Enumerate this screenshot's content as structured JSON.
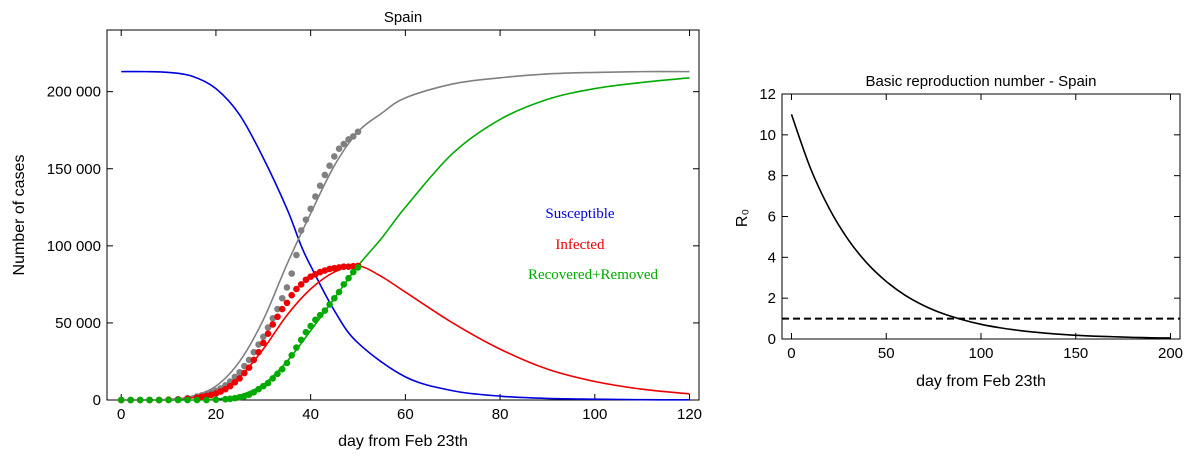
{
  "chart_data": [
    {
      "type": "line",
      "title": "Spain",
      "xlabel": "day from Feb 23th",
      "ylabel": "Number of cases",
      "xlim": [
        -3,
        122
      ],
      "ylim": [
        0,
        240000
      ],
      "xticks": [
        0,
        20,
        40,
        60,
        80,
        100,
        120
      ],
      "yticks": [
        0,
        50000,
        100000,
        150000,
        200000
      ],
      "xtick_labels": [
        "0",
        "20",
        "40",
        "60",
        "80",
        "100",
        "120"
      ],
      "ytick_labels": [
        "0",
        "50 000",
        "100 000",
        "150 000",
        "200 000"
      ],
      "legend_position": "center-right",
      "series": [
        {
          "name": "Susceptible",
          "kind": "curve",
          "color": "#0000dd",
          "x": [
            0,
            5,
            10,
            15,
            20,
            25,
            30,
            35,
            38,
            40,
            45,
            50,
            60,
            70,
            80,
            90,
            100,
            110,
            120
          ],
          "y": [
            213000,
            213000,
            212500,
            210000,
            202000,
            185000,
            157000,
            124000,
            100000,
            87000,
            58000,
            37000,
            15000,
            6000,
            2500,
            1000,
            500,
            200,
            100
          ]
        },
        {
          "name": "Infected",
          "kind": "curve",
          "color": "#ee0000",
          "x": [
            0,
            10,
            15,
            20,
            25,
            30,
            35,
            40,
            45,
            50,
            55,
            60,
            70,
            80,
            90,
            100,
            110,
            120
          ],
          "y": [
            0,
            300,
            1500,
            5000,
            15000,
            33000,
            55000,
            72000,
            83000,
            87000,
            80000,
            70000,
            50000,
            33000,
            20000,
            12000,
            7000,
            4000
          ]
        },
        {
          "name": "Recovered+Removed",
          "kind": "curve",
          "color": "#00aa00",
          "x": [
            0,
            15,
            20,
            25,
            30,
            35,
            40,
            45,
            50,
            55,
            60,
            70,
            80,
            90,
            100,
            110,
            120
          ],
          "y": [
            0,
            0,
            500,
            3000,
            10000,
            25000,
            45000,
            66000,
            87000,
            105000,
            125000,
            160000,
            182000,
            195000,
            202000,
            206000,
            209000
          ]
        },
        {
          "name": "",
          "kind": "curve",
          "color": "#808080",
          "x": [
            0,
            10,
            15,
            20,
            25,
            30,
            35,
            40,
            45,
            50,
            55,
            60,
            70,
            80,
            90,
            100,
            110,
            120
          ],
          "y": [
            0,
            400,
            2500,
            9000,
            25000,
            52000,
            88000,
            121000,
            152000,
            174000,
            186000,
            196000,
            205000,
            209000,
            211500,
            212500,
            213000,
            213000
          ]
        },
        {
          "name": "",
          "kind": "points",
          "color": "#808080",
          "x": [
            0,
            2,
            4,
            6,
            8,
            10,
            12,
            14,
            16,
            17,
            18,
            19,
            20,
            21,
            22,
            23,
            24,
            25,
            26,
            27,
            28,
            29,
            30,
            31,
            32,
            33,
            34,
            35,
            36,
            37,
            38,
            39,
            40,
            41,
            42,
            43,
            44,
            45,
            46,
            47,
            48,
            49,
            50
          ],
          "y": [
            0,
            0,
            0,
            0,
            0,
            200,
            500,
            1200,
            2200,
            3000,
            4000,
            5000,
            6000,
            7500,
            9500,
            12000,
            15000,
            18000,
            22000,
            26000,
            31000,
            36000,
            41000,
            47000,
            53000,
            59000,
            66000,
            73000,
            82000,
            94000,
            110000,
            117000,
            124000,
            132000,
            139000,
            146000,
            152000,
            158000,
            163000,
            166000,
            169000,
            171000,
            174000
          ]
        },
        {
          "name": "",
          "kind": "points",
          "color": "#ee0000",
          "x": [
            0,
            2,
            4,
            6,
            8,
            10,
            12,
            14,
            16,
            17,
            18,
            19,
            20,
            21,
            22,
            23,
            24,
            25,
            26,
            27,
            28,
            29,
            30,
            31,
            32,
            33,
            34,
            35,
            36,
            37,
            38,
            39,
            40,
            41,
            42,
            43,
            44,
            45,
            46,
            47,
            48,
            49,
            50
          ],
          "y": [
            0,
            0,
            0,
            0,
            0,
            100,
            300,
            800,
            1500,
            2000,
            2600,
            3300,
            4200,
            5500,
            7000,
            9000,
            11500,
            14000,
            17500,
            21000,
            26000,
            31000,
            37000,
            43000,
            49000,
            54000,
            59000,
            63000,
            68000,
            72000,
            75000,
            78000,
            80000,
            81500,
            83000,
            84000,
            85000,
            85500,
            86000,
            86500,
            86500,
            86800,
            87000
          ]
        },
        {
          "name": "",
          "kind": "points",
          "color": "#00aa00",
          "x": [
            0,
            2,
            4,
            6,
            8,
            10,
            12,
            14,
            16,
            18,
            20,
            22,
            23,
            24,
            25,
            26,
            27,
            28,
            29,
            30,
            31,
            32,
            33,
            34,
            35,
            36,
            37,
            38,
            39,
            40,
            41,
            42,
            43,
            44,
            45,
            46,
            47,
            48,
            49,
            50
          ],
          "y": [
            0,
            0,
            0,
            0,
            0,
            0,
            0,
            0,
            0,
            0,
            200,
            500,
            800,
            1200,
            1800,
            2500,
            3500,
            5000,
            7000,
            9000,
            11000,
            14000,
            17000,
            20000,
            24000,
            29000,
            34000,
            39000,
            44000,
            48000,
            52000,
            55000,
            58000,
            62000,
            66000,
            70000,
            75000,
            79000,
            83000,
            86000
          ]
        }
      ],
      "annotations": [
        {
          "text": "Susceptible",
          "color": "#0000dd"
        },
        {
          "text": "Infected",
          "color": "#ee0000"
        },
        {
          "text": "Recovered+Removed",
          "color": "#00aa00"
        }
      ]
    },
    {
      "type": "line",
      "title": "Basic reproduction number - Spain",
      "xlabel": "day from Feb 23th",
      "ylabel": "R₀",
      "xlim": [
        -5,
        205
      ],
      "ylim": [
        0,
        12
      ],
      "xticks": [
        0,
        50,
        100,
        150,
        200
      ],
      "yticks": [
        0,
        2,
        4,
        6,
        8,
        10,
        12
      ],
      "xtick_labels": [
        "0",
        "50",
        "100",
        "150",
        "200"
      ],
      "ytick_labels": [
        "0",
        "2",
        "4",
        "6",
        "8",
        "10",
        "12"
      ],
      "series": [
        {
          "name": "",
          "kind": "curve",
          "color": "#000000",
          "x": [
            0,
            10,
            20,
            30,
            40,
            50,
            60,
            70,
            80,
            90,
            100,
            110,
            120,
            130,
            140,
            150,
            160,
            170,
            180,
            190,
            200
          ],
          "y": [
            11.0,
            8.37,
            6.38,
            4.86,
            3.7,
            2.82,
            2.14,
            1.63,
            1.24,
            0.95,
            0.72,
            0.55,
            0.42,
            0.32,
            0.24,
            0.18,
            0.14,
            0.11,
            0.08,
            0.06,
            0.05
          ]
        },
        {
          "name": "",
          "kind": "dashed",
          "color": "#000000",
          "x": [
            -5,
            205
          ],
          "y": [
            1,
            1
          ]
        }
      ]
    }
  ]
}
